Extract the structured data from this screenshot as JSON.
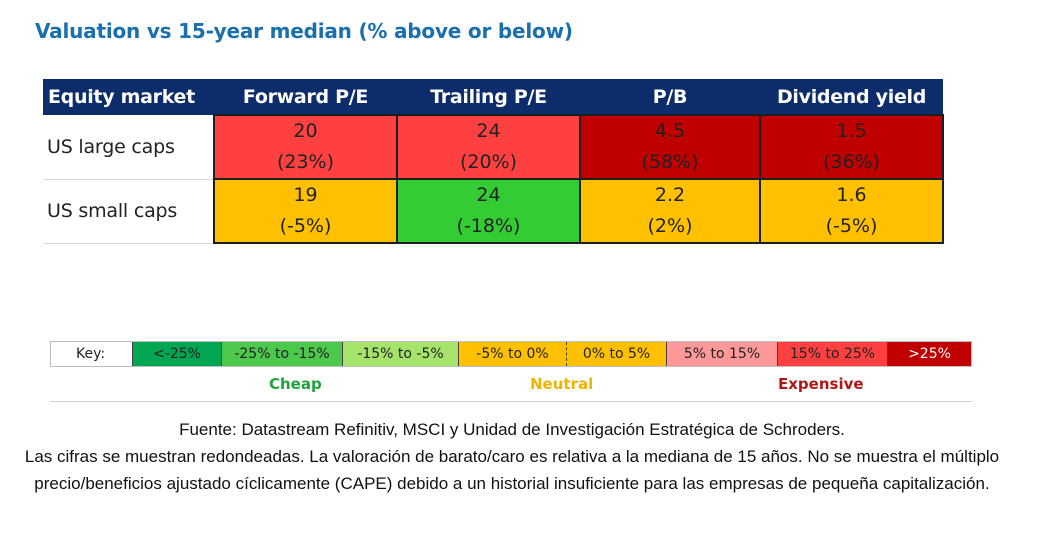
{
  "title": "Valuation vs 15-year median (% above or below)",
  "chart_data": {
    "type": "table",
    "title": "Valuation vs 15-year median (% above or below)",
    "columns": [
      "Equity market",
      "Forward P/E",
      "Trailing P/E",
      "P/B",
      "Dividend yield"
    ],
    "rows": [
      {
        "label": "US large caps",
        "cells": [
          {
            "value": "20",
            "pct": "(23%)",
            "color": "#ff4040"
          },
          {
            "value": "24",
            "pct": "(20%)",
            "color": "#ff4040"
          },
          {
            "value": "4.5",
            "pct": "(58%)",
            "color": "#c00000"
          },
          {
            "value": "1.5",
            "pct": "(36%)",
            "color": "#c00000"
          }
        ]
      },
      {
        "label": "US small caps",
        "cells": [
          {
            "value": "19",
            "pct": "(-5%)",
            "color": "#ffc000"
          },
          {
            "value": "24",
            "pct": "(-18%)",
            "color": "#33cc33"
          },
          {
            "value": "2.2",
            "pct": "(2%)",
            "color": "#ffc000"
          },
          {
            "value": "1.6",
            "pct": "(-5%)",
            "color": "#ffc000"
          }
        ]
      }
    ]
  },
  "key": {
    "label": "Key:",
    "items": [
      {
        "label": "<-25%",
        "color": "#00a651"
      },
      {
        "label": "-25% to -15%",
        "color": "#4cc84c"
      },
      {
        "label": "-15% to -5%",
        "color": "#a6e36b"
      },
      {
        "label": "-5% to 0%",
        "color": "#ffc000"
      },
      {
        "label": "0% to 5%",
        "color": "#ffc000"
      },
      {
        "label": "5% to 15%",
        "color": "#ff9999"
      },
      {
        "label": "15% to 25%",
        "color": "#ff4040"
      },
      {
        "label": ">25%",
        "color": "#c00000"
      }
    ],
    "zones": {
      "cheap": {
        "label": "Cheap",
        "color": "#1fa33a"
      },
      "neutral": {
        "label": "Neutral",
        "color": "#f0b400"
      },
      "expensive": {
        "label": "Expensive",
        "color": "#b01717"
      }
    }
  },
  "source": {
    "line1": "Fuente: Datastream Refinitiv, MSCI y Unidad de Investigación Estratégica de Schroders.",
    "line2": "Las cifras se muestran redondeadas. La valoración de barato/caro es relativa a la mediana de 15 años. No se muestra el múltiplo precio/beneficios ajustado cíclicamente (CAPE) debido a un historial insuficiente para las empresas de pequeña capitalización."
  }
}
